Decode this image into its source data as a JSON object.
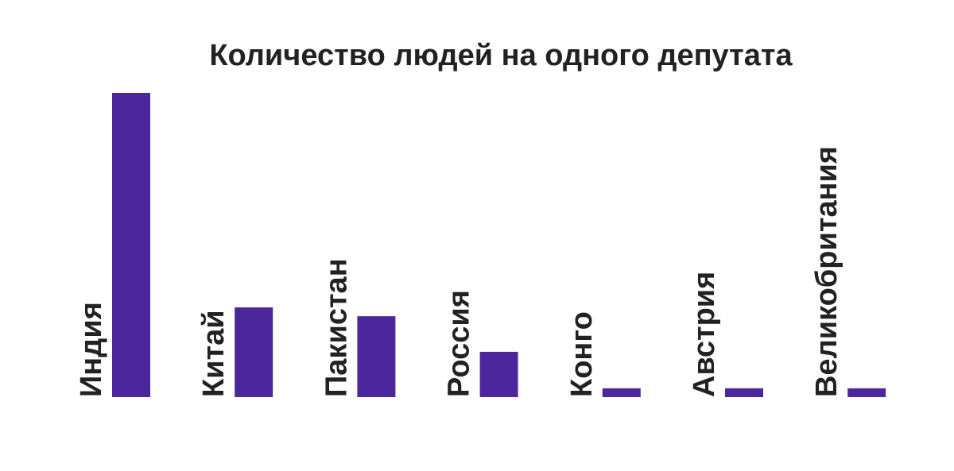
{
  "chart_data": {
    "type": "bar",
    "title": "Количество людей на одного депутата",
    "categories": [
      "Индия",
      "Китай",
      "Пакистан",
      "Россия",
      "Конго",
      "Австрия",
      "Великобритания"
    ],
    "values": [
      100,
      29.5,
      26.6,
      14.9,
      2.9,
      2.9,
      2.9
    ],
    "color": "#4c269d",
    "ylim": [
      0,
      100
    ]
  }
}
